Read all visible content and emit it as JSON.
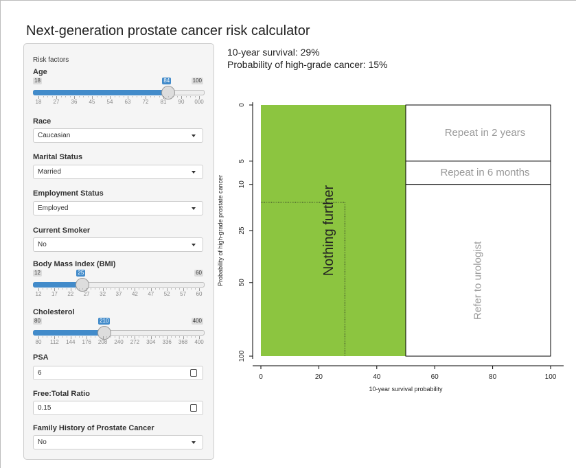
{
  "title": "Next-generation prostate cancer risk calculator",
  "sidebar": {
    "heading": "Risk factors",
    "inputs": [
      {
        "label": "Age",
        "type": "slider",
        "min": 18,
        "max": 100,
        "value": 84,
        "ticks": [
          18,
          27,
          36,
          45,
          54,
          63,
          72,
          81,
          90,
          "000"
        ]
      },
      {
        "label": "Race",
        "type": "select",
        "value": "Caucasian"
      },
      {
        "label": "Marital Status",
        "type": "select",
        "value": "Married"
      },
      {
        "label": "Employment Status",
        "type": "select",
        "value": "Employed"
      },
      {
        "label": "Current Smoker",
        "type": "select",
        "value": "No"
      },
      {
        "label": "Body Mass Index (BMI)",
        "type": "slider",
        "min": 12,
        "max": 60,
        "value": 25,
        "ticks": [
          12,
          17,
          22,
          27,
          32,
          37,
          42,
          47,
          52,
          57,
          60
        ]
      },
      {
        "label": "Cholesterol",
        "type": "slider",
        "min": 80,
        "max": 400,
        "value": 210,
        "ticks": [
          80,
          112,
          144,
          176,
          208,
          240,
          272,
          304,
          336,
          368,
          400
        ]
      },
      {
        "label": "PSA",
        "type": "number",
        "value": 6
      },
      {
        "label": "Free:Total Ratio",
        "type": "number",
        "value": 0.15
      },
      {
        "label": "Family History of Prostate Cancer",
        "type": "select",
        "value": "No"
      }
    ]
  },
  "results": {
    "survival": "10-year survival: 29%",
    "high_grade": "Probability of high-grade cancer: 15%"
  },
  "chart_data": {
    "type": "region",
    "xlabel": "10-year survival probability",
    "ylabel": "Probability of high-grade prostate cancer",
    "xlim": [
      0,
      100
    ],
    "xticks": [
      0,
      20,
      40,
      60,
      80,
      100
    ],
    "ylim": [
      0,
      100
    ],
    "yticks": [
      0,
      5,
      10,
      25,
      50,
      100
    ],
    "yscale": "sqrt",
    "yreversed": true,
    "regions": [
      {
        "label": "Nothing further",
        "x": [
          0,
          50
        ],
        "y": [
          0,
          100
        ],
        "color": "#8cc540"
      },
      {
        "label": "Repeat in 2 years",
        "x": [
          50,
          100
        ],
        "y": [
          0,
          5
        ]
      },
      {
        "label": "Repeat in 6 months",
        "x": [
          50,
          100
        ],
        "y": [
          5,
          10
        ]
      },
      {
        "label": "Refer to urologist",
        "x": [
          50,
          100
        ],
        "y": [
          10,
          100
        ]
      }
    ],
    "point": {
      "x": 29,
      "y": 15
    }
  }
}
